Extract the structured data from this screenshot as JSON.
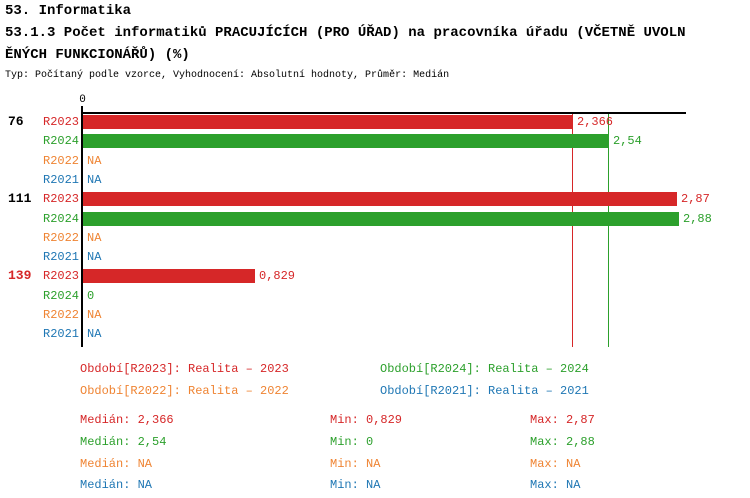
{
  "header": {
    "title": "53. Informatika",
    "subtitle_line1": "53.1.3 Počet informatiků PRACUJÍCÍCH (PRO ÚŘAD) na pracovníka úřadu (VČETNĚ UVOLN",
    "subtitle_line2": "ĚNÝCH FUNKCIONÁŘŮ) (%)",
    "meta": "Typ: Počítaný podle vzorce, Vyhodnocení: Absolutní hodnoty, Průměr: Medián"
  },
  "colors": {
    "R2023": "#d62728",
    "R2024": "#2ca02c",
    "R2022": "#ef8433",
    "R2021": "#1f77b4",
    "axis": "#000000"
  },
  "chart_data": {
    "type": "bar",
    "orientation": "horizontal",
    "title": "53.1.3 Počet informatiků PRACUJÍCÍCH (PRO ÚŘAD) na pracovníka úřadu (VČETNĚ UVOLNĚNÝCH FUNKCIONÁŘŮ) (%)",
    "xlabel": "",
    "ylabel": "",
    "xlim": [
      0,
      2.92
    ],
    "x_ticks": [
      {
        "value": 0,
        "label": "0"
      }
    ],
    "grid": false,
    "series_keys": [
      "R2023",
      "R2024",
      "R2022",
      "R2021"
    ],
    "groups": [
      {
        "label": "76",
        "label_color": "#000000",
        "rows": [
          {
            "series": "R2023",
            "value": 2.366,
            "display": "2,366"
          },
          {
            "series": "R2024",
            "value": 2.54,
            "display": "2,54"
          },
          {
            "series": "R2022",
            "value": null,
            "display": "NA"
          },
          {
            "series": "R2021",
            "value": null,
            "display": "NA"
          }
        ]
      },
      {
        "label": "111",
        "label_color": "#000000",
        "rows": [
          {
            "series": "R2023",
            "value": 2.87,
            "display": "2,87"
          },
          {
            "series": "R2024",
            "value": 2.88,
            "display": "2,88"
          },
          {
            "series": "R2022",
            "value": null,
            "display": "NA"
          },
          {
            "series": "R2021",
            "value": null,
            "display": "NA"
          }
        ]
      },
      {
        "label": "139",
        "label_color": "#d62728",
        "rows": [
          {
            "series": "R2023",
            "value": 0.829,
            "display": "0,829"
          },
          {
            "series": "R2024",
            "value": 0,
            "display": "0"
          },
          {
            "series": "R2022",
            "value": null,
            "display": "NA"
          },
          {
            "series": "R2021",
            "value": null,
            "display": "NA"
          }
        ]
      }
    ],
    "median_lines": [
      {
        "series": "R2023",
        "value": 2.366
      },
      {
        "series": "R2024",
        "value": 2.54
      }
    ]
  },
  "legend": {
    "items": [
      {
        "series": "R2023",
        "label": "Období[R2023]: Realita – 2023"
      },
      {
        "series": "R2024",
        "label": "Období[R2024]: Realita – 2024"
      },
      {
        "series": "R2022",
        "label": "Období[R2022]: Realita – 2022"
      },
      {
        "series": "R2021",
        "label": "Období[R2021]: Realita – 2021"
      }
    ]
  },
  "stats": {
    "rows": [
      {
        "series": "R2023",
        "median": "Medián: 2,366",
        "min": "Min: 0,829",
        "max": "Max: 2,87"
      },
      {
        "series": "R2024",
        "median": "Medián: 2,54",
        "min": "Min: 0",
        "max": "Max: 2,88"
      },
      {
        "series": "R2022",
        "median": "Medián: NA",
        "min": "Min: NA",
        "max": "Max: NA"
      },
      {
        "series": "R2021",
        "median": "Medián: NA",
        "min": "Min: NA",
        "max": "Max: NA"
      }
    ]
  }
}
